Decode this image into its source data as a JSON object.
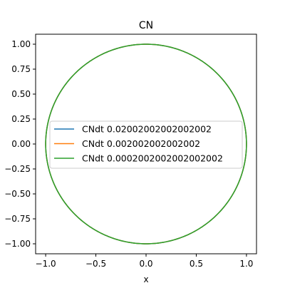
{
  "chart_data": {
    "type": "line",
    "title": "CN",
    "xlabel": "x",
    "ylabel": "",
    "xlim": [
      -1.1,
      1.1
    ],
    "ylim": [
      -1.1,
      1.1
    ],
    "xticks": [
      -1.0,
      -0.5,
      0.0,
      0.5,
      1.0
    ],
    "xtick_labels": [
      "−1.0",
      "−0.5",
      "0.0",
      "0.5",
      "1.0"
    ],
    "yticks": [
      1.0,
      0.75,
      0.5,
      0.25,
      0.0,
      -0.25,
      -0.5,
      -0.75,
      -1.0
    ],
    "ytick_labels": [
      "1.00",
      "0.75",
      "0.50",
      "0.25",
      "0.00",
      "−0.25",
      "−0.50",
      "−0.75",
      "−1.00"
    ],
    "grid": false,
    "legend_position": "center",
    "series": [
      {
        "name": "CNdt 0.02002002002002002",
        "color": "#1f77b4",
        "shape": "circle",
        "center": [
          0,
          0
        ],
        "radius": 1.0
      },
      {
        "name": "CNdt 0.002002002002002",
        "color": "#ff7f0e",
        "shape": "circle",
        "center": [
          0,
          0
        ],
        "radius": 1.0
      },
      {
        "name": "CNdt 0.0002002002002002002",
        "color": "#2ca02c",
        "shape": "circle",
        "center": [
          0,
          0
        ],
        "radius": 1.0
      }
    ]
  }
}
